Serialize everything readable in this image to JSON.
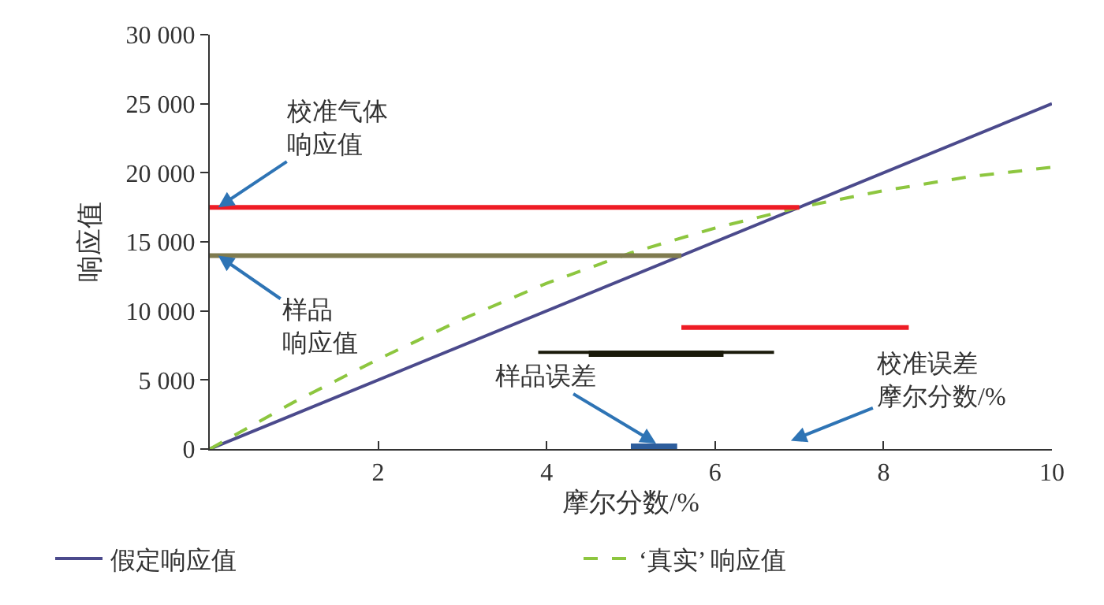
{
  "chart_data": {
    "type": "line",
    "xlabel": "摩尔分数/%",
    "ylabel": "响应值",
    "xlim": [
      0,
      10
    ],
    "xticks": [
      2,
      4,
      6,
      8,
      10
    ],
    "ylim": [
      0,
      30000
    ],
    "yticks": [
      0,
      {
        "value": 5000,
        "label": "5 000"
      },
      {
        "value": 10000,
        "label": "10 000"
      },
      {
        "value": 15000,
        "label": "15 000"
      },
      {
        "value": 20000,
        "label": "20 000"
      },
      {
        "value": 25000,
        "label": "25 000"
      },
      {
        "value": 30000,
        "label": "30 000"
      }
    ],
    "grid": false,
    "legend": "bottom",
    "marker": "none",
    "series": [
      {
        "name": "假定响应值",
        "color": "#4b4a8c",
        "x": [
          0,
          10
        ],
        "values": [
          0,
          25000
        ],
        "line_style": "solid"
      },
      {
        "name": "‘真实’ 响应值",
        "color": "#8dc63f",
        "x": [
          0,
          1,
          2,
          3,
          4,
          5,
          6,
          7,
          8,
          9,
          10
        ],
        "values": [
          0,
          3400,
          6500,
          9400,
          12000,
          14200,
          16000,
          17500,
          18700,
          19700,
          20400
        ],
        "line_style": "dashed"
      },
      {
        "color": "#ee1c25",
        "x": [
          0,
          7
        ],
        "values": [
          17500,
          17500
        ],
        "line_style": "solid"
      },
      {
        "color": "#7f7b4f",
        "x": [
          0,
          5.6
        ],
        "values": [
          14000,
          14000
        ],
        "line_style": "solid"
      },
      {
        "color": "#ee1c25",
        "x": [
          5.6,
          8.3
        ],
        "values": [
          8800,
          8800
        ],
        "line_style": "solid"
      },
      {
        "color": "#1a1a0a",
        "x": [
          3.9,
          6.7
        ],
        "values": [
          7000,
          7000
        ],
        "line_style": "solid"
      },
      {
        "color": "#1a1a0a",
        "x": [
          4.5,
          6.1
        ],
        "values": [
          6900,
          6900
        ],
        "line_style": "solid"
      },
      {
        "color": "#2d5d9c",
        "x": [
          5.0,
          5.55
        ],
        "values": [
          0,
          0
        ],
        "line_style": "solid"
      }
    ],
    "annotations": [
      {
        "text": "校准气体响应值",
        "y": 17500
      },
      {
        "text": "样品响应值",
        "y": 14000
      },
      {
        "text": "样品误差",
        "x": 5.3,
        "y": 400
      },
      "校准误差摩尔分数/%"
    ]
  }
}
